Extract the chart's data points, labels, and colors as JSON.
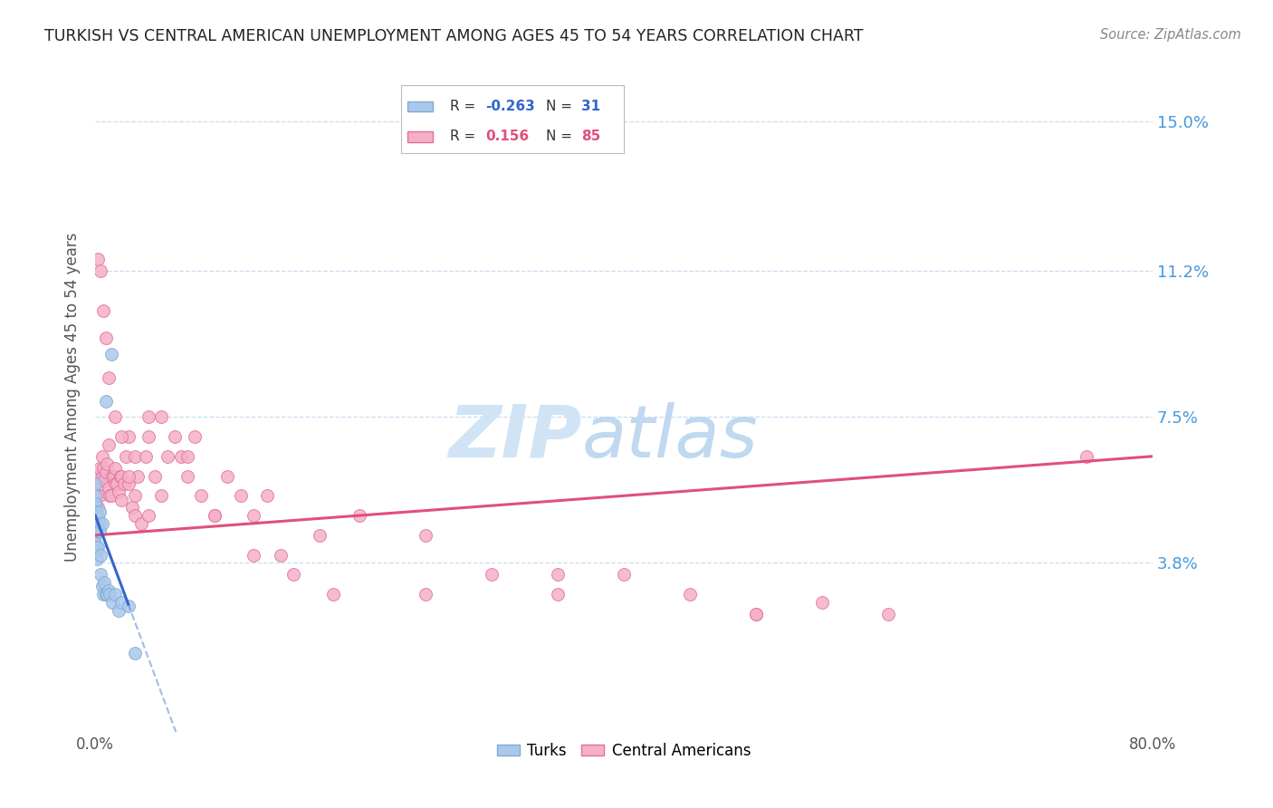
{
  "title": "TURKISH VS CENTRAL AMERICAN UNEMPLOYMENT AMONG AGES 45 TO 54 YEARS CORRELATION CHART",
  "source": "Source: ZipAtlas.com",
  "ylabel": "Unemployment Among Ages 45 to 54 years",
  "ytick_values": [
    3.8,
    7.5,
    11.2,
    15.0
  ],
  "xlim": [
    0.0,
    80.0
  ],
  "ylim": [
    -0.5,
    16.5
  ],
  "turks_color": "#aac8ea",
  "turks_edge_color": "#80aad4",
  "central_color": "#f5b0c8",
  "central_edge_color": "#e07098",
  "trendline_turks_color": "#3366cc",
  "trendline_central_color": "#e0507a",
  "background_color": "#ffffff",
  "grid_color": "#c8ddf0",
  "title_color": "#222222",
  "axis_label_color": "#555555",
  "right_ytick_color": "#4499dd",
  "watermark_zip_color": "#d0e4f5",
  "watermark_atlas_color": "#c0d8f0",
  "turks_x": [
    0.0,
    0.0,
    0.0,
    0.0,
    0.0,
    0.0,
    0.0,
    0.0,
    0.0,
    0.0,
    0.0,
    0.1,
    0.1,
    0.1,
    0.1,
    0.1,
    0.2,
    0.2,
    0.2,
    0.3,
    0.3,
    0.3,
    0.4,
    0.4,
    0.5,
    0.5,
    0.6,
    0.7,
    0.8,
    0.8,
    0.9,
    1.0,
    1.1,
    1.2,
    1.3,
    1.5,
    1.8,
    2.0,
    2.5,
    3.0
  ],
  "turks_y": [
    4.5,
    5.0,
    5.2,
    4.7,
    4.3,
    5.5,
    5.3,
    4.9,
    4.6,
    5.8,
    5.1,
    4.1,
    3.9,
    4.2,
    5.0,
    4.8,
    4.2,
    5.0,
    4.9,
    4.8,
    4.6,
    5.1,
    3.5,
    4.0,
    4.8,
    3.2,
    3.0,
    3.3,
    3.0,
    7.9,
    3.0,
    3.1,
    3.0,
    9.1,
    2.8,
    3.0,
    2.6,
    2.8,
    2.7,
    1.5
  ],
  "central_x": [
    0.0,
    0.0,
    0.1,
    0.1,
    0.2,
    0.2,
    0.3,
    0.3,
    0.4,
    0.5,
    0.5,
    0.6,
    0.7,
    0.8,
    0.9,
    1.0,
    1.0,
    1.1,
    1.2,
    1.3,
    1.4,
    1.5,
    1.5,
    1.6,
    1.8,
    1.9,
    2.0,
    2.0,
    2.2,
    2.3,
    2.5,
    2.5,
    2.8,
    3.0,
    3.0,
    3.2,
    3.5,
    3.8,
    4.0,
    4.0,
    4.5,
    5.0,
    5.5,
    6.0,
    6.5,
    7.0,
    7.5,
    8.0,
    9.0,
    10.0,
    11.0,
    12.0,
    13.0,
    14.0,
    15.0,
    17.0,
    20.0,
    25.0,
    30.0,
    35.0,
    40.0,
    45.0,
    50.0,
    55.0,
    60.0,
    0.2,
    0.4,
    0.6,
    0.8,
    1.0,
    1.5,
    2.0,
    2.5,
    3.0,
    4.0,
    5.0,
    7.0,
    9.0,
    12.0,
    18.0,
    25.0,
    35.0,
    50.0,
    75.0
  ],
  "central_y": [
    5.0,
    5.3,
    4.8,
    5.5,
    5.2,
    6.0,
    5.5,
    6.2,
    5.8,
    6.0,
    6.5,
    6.2,
    5.9,
    6.1,
    6.3,
    5.7,
    6.8,
    5.5,
    5.5,
    6.0,
    6.0,
    6.2,
    5.8,
    5.8,
    5.6,
    6.0,
    6.0,
    5.4,
    5.8,
    6.5,
    5.8,
    7.0,
    5.2,
    5.0,
    6.5,
    6.0,
    4.8,
    6.5,
    5.0,
    7.5,
    6.0,
    5.5,
    6.5,
    7.0,
    6.5,
    6.0,
    7.0,
    5.5,
    5.0,
    6.0,
    5.5,
    5.0,
    5.5,
    4.0,
    3.5,
    4.5,
    5.0,
    4.5,
    3.5,
    3.0,
    3.5,
    3.0,
    2.5,
    2.8,
    2.5,
    11.5,
    11.2,
    10.2,
    9.5,
    8.5,
    7.5,
    7.0,
    6.0,
    5.5,
    7.0,
    7.5,
    6.5,
    5.0,
    4.0,
    3.0,
    3.0,
    3.5,
    2.5,
    6.5
  ]
}
